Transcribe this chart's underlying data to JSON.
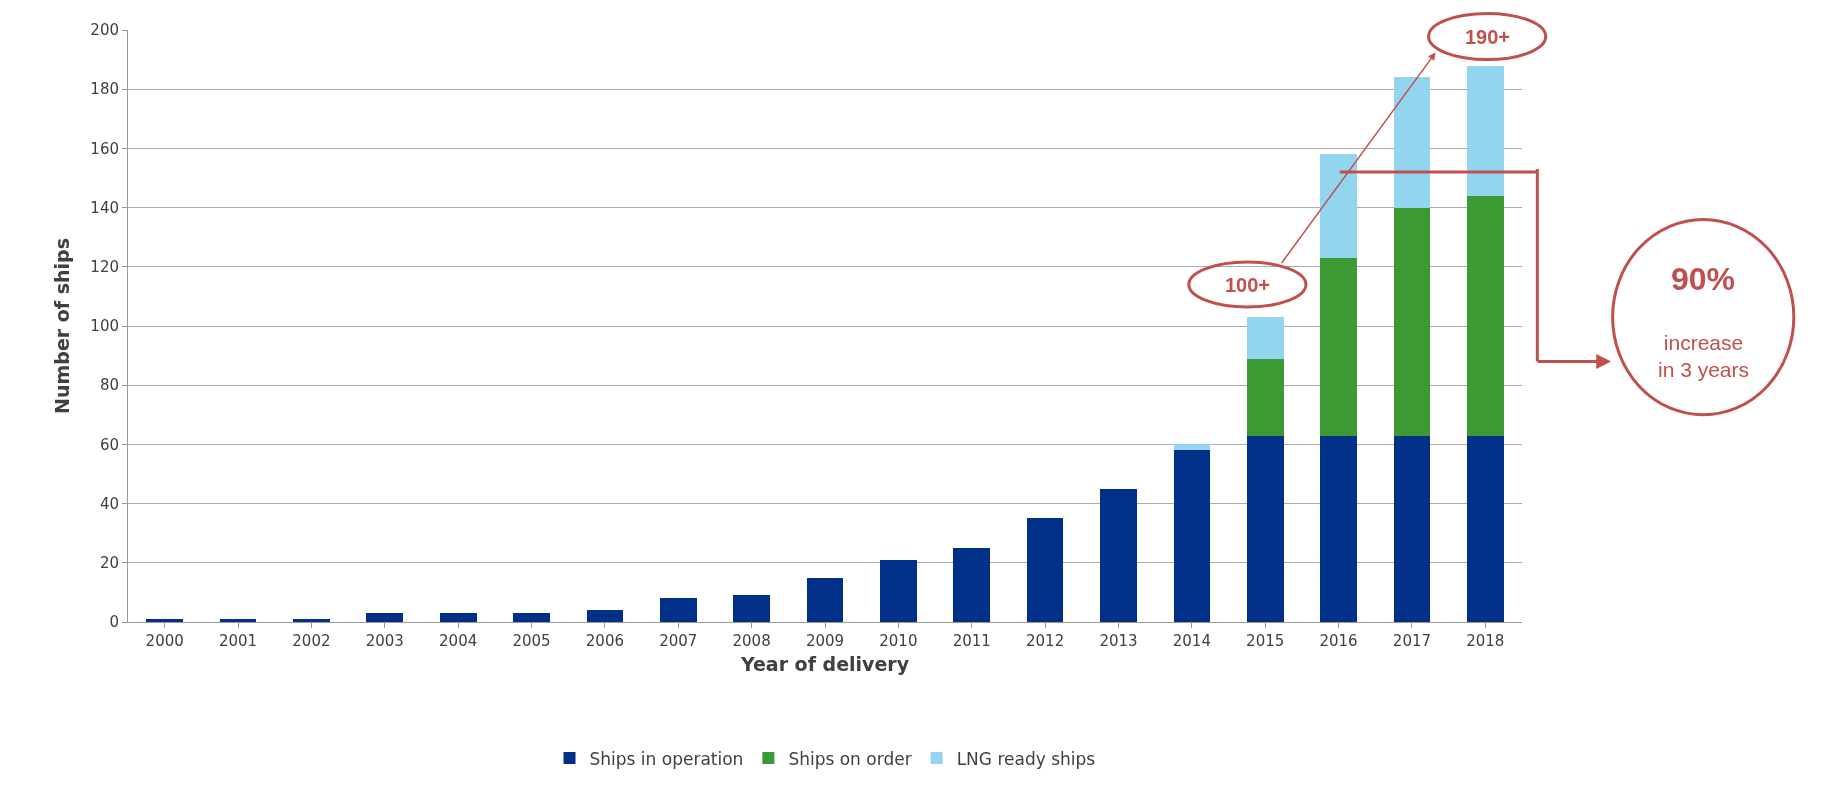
{
  "chart_data": {
    "type": "bar",
    "stacked": true,
    "xlabel": "Year of delivery",
    "ylabel": "Number of ships",
    "categories": [
      "2000",
      "2001",
      "2002",
      "2003",
      "2004",
      "2005",
      "2006",
      "2007",
      "2008",
      "2009",
      "2010",
      "2011",
      "2012",
      "2013",
      "2014",
      "2015",
      "2016",
      "2017",
      "2018"
    ],
    "series": [
      {
        "name": "Ships in operation",
        "color": "#003087",
        "values": [
          1,
          1,
          1,
          3,
          3,
          3,
          4,
          8,
          9,
          15,
          21,
          25,
          35,
          45,
          58,
          63,
          63,
          63,
          63
        ]
      },
      {
        "name": "Ships on order",
        "color": "#3c9a35",
        "values": [
          null,
          null,
          null,
          null,
          null,
          null,
          null,
          null,
          null,
          null,
          null,
          null,
          null,
          null,
          null,
          26,
          60,
          77,
          81
        ]
      },
      {
        "name": "LNG ready ships",
        "color": "#93d5ee",
        "values": [
          null,
          null,
          null,
          null,
          null,
          null,
          null,
          null,
          null,
          null,
          null,
          null,
          null,
          null,
          2,
          14,
          35,
          44,
          44
        ]
      }
    ],
    "ylim": [
      0,
      200
    ],
    "yticks": [
      0,
      20,
      40,
      60,
      80,
      100,
      120,
      140,
      160,
      180,
      200
    ],
    "grid": "y",
    "legend": "bottom",
    "annotations": [
      "100+",
      "190+",
      "90%",
      "increase\nin 3 years"
    ]
  }
}
